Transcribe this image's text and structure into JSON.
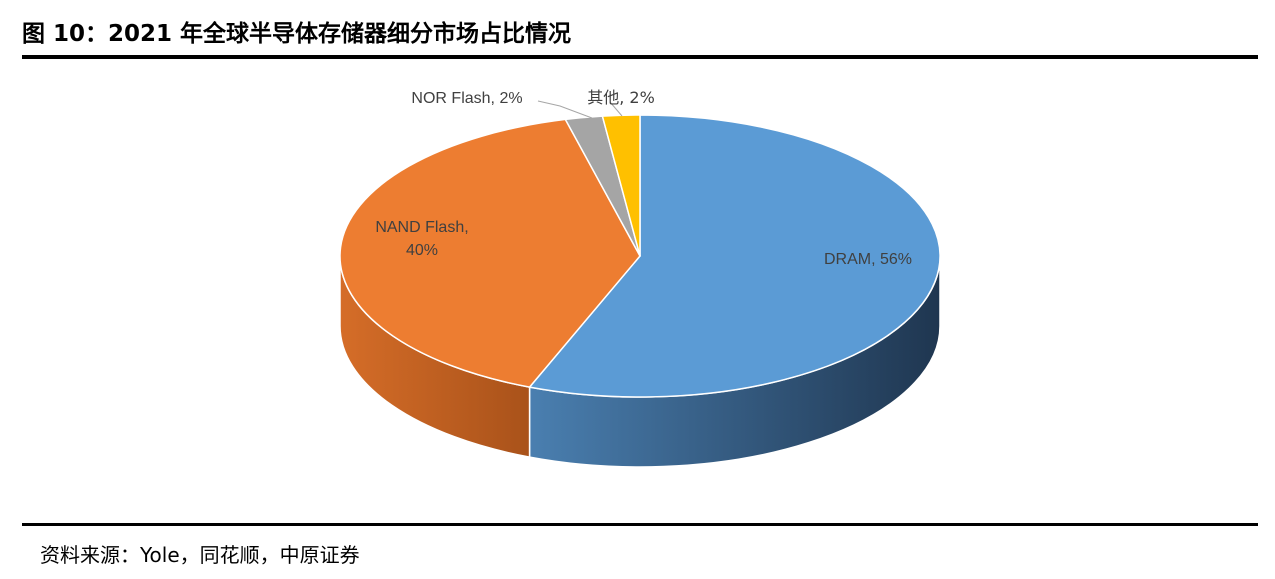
{
  "header": {
    "title": "图 10：2021 年全球半导体存储器细分市场占比情况"
  },
  "footer": {
    "source": "资料来源：Yole，同花顺，中原证券"
  },
  "chart_data": {
    "type": "pie",
    "style": "3d",
    "title": "",
    "slices": [
      {
        "label": "DRAM",
        "value": 56,
        "color": "#5b9bd5",
        "side_color": "#2c4a6b"
      },
      {
        "label": "NAND Flash",
        "value": 40,
        "color": "#ed7d31",
        "side_color": "#b5571c"
      },
      {
        "label": "NOR Flash",
        "value": 2,
        "color": "#a5a5a5",
        "side_color": "#7a7a7a"
      },
      {
        "label": "其他",
        "value": 2,
        "color": "#ffc000",
        "side_color": "#c99400"
      }
    ],
    "data_labels": [
      {
        "line1": "DRAM, 56%",
        "line2": ""
      },
      {
        "line1": "NAND Flash,",
        "line2": "40%"
      },
      {
        "line1": "NOR Flash, 2%",
        "line2": ""
      },
      {
        "line1": "其他, 2%",
        "line2": ""
      }
    ]
  }
}
